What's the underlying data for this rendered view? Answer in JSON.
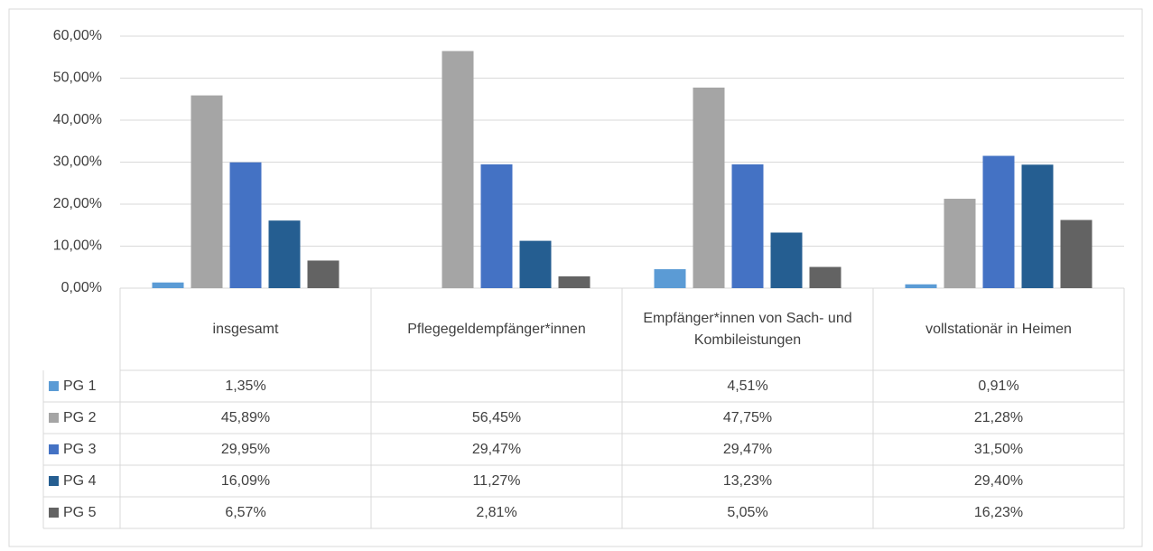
{
  "chart_data": {
    "type": "bar",
    "categories": [
      "insgesamt",
      "Pflegegeldempfänger*innen",
      "Empfänger*innen von Sach- und Kombileistungen",
      "vollstationär in Heimen"
    ],
    "series": [
      {
        "name": "PG 1",
        "color": "#5B9BD5",
        "values": [
          1.35,
          null,
          4.51,
          0.91
        ],
        "value_labels": [
          "1,35%",
          null,
          "4,51%",
          "0,91%"
        ]
      },
      {
        "name": "PG 2",
        "color": "#A5A5A5",
        "values": [
          45.89,
          56.45,
          47.75,
          21.28
        ],
        "value_labels": [
          "45,89%",
          "56,45%",
          "47,75%",
          "21,28%"
        ]
      },
      {
        "name": "PG 3",
        "color": "#4472C4",
        "values": [
          29.95,
          29.47,
          29.47,
          31.5
        ],
        "value_labels": [
          "29,95%",
          "29,47%",
          "29,47%",
          "31,50%"
        ]
      },
      {
        "name": "PG 4",
        "color": "#255E91",
        "values": [
          16.09,
          11.27,
          13.23,
          29.4
        ],
        "value_labels": [
          "16,09%",
          "11,27%",
          "13,23%",
          "29,40%"
        ]
      },
      {
        "name": "PG 5",
        "color": "#636363",
        "values": [
          6.57,
          2.81,
          5.05,
          16.23
        ],
        "value_labels": [
          "6,57%",
          "2,81%",
          "5,05%",
          "16,23%"
        ]
      }
    ],
    "ylim": [
      0,
      60
    ],
    "yticks": [
      {
        "value": 0,
        "label": "0,00%"
      },
      {
        "value": 10,
        "label": "10,00%"
      },
      {
        "value": 20,
        "label": "20,00%"
      },
      {
        "value": 30,
        "label": "30,00%"
      },
      {
        "value": 40,
        "label": "40,00%"
      },
      {
        "value": 50,
        "label": "50,00%"
      },
      {
        "value": 60,
        "label": "60,00%"
      }
    ],
    "grid": true,
    "data_table": true
  }
}
